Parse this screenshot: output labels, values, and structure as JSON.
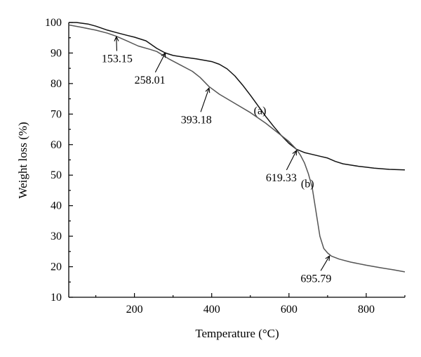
{
  "chart_data": {
    "type": "line",
    "title": "",
    "xlabel": "Temperature (°C)",
    "ylabel": "Weight loss (%)",
    "xlim": [
      30,
      900
    ],
    "ylim": [
      10,
      100
    ],
    "x_ticks": [
      200,
      400,
      600,
      800
    ],
    "y_ticks": [
      10,
      20,
      30,
      40,
      50,
      60,
      70,
      80,
      90,
      100
    ],
    "series": [
      {
        "name": "(a)",
        "color": "#111111",
        "x": [
          30,
          50,
          80,
          100,
          130,
          153,
          180,
          200,
          230,
          258,
          280,
          300,
          330,
          360,
          400,
          420,
          440,
          460,
          480,
          500,
          520,
          540,
          560,
          580,
          600,
          619,
          640,
          660,
          680,
          700,
          720,
          740,
          760,
          780,
          800,
          820,
          840,
          860,
          880,
          900
        ],
        "y": [
          100,
          100,
          99.5,
          98.8,
          97.5,
          96.7,
          95.8,
          95.2,
          94,
          91.5,
          90,
          89.2,
          88.6,
          88.1,
          87.2,
          86.3,
          84.8,
          82.5,
          79.5,
          76.2,
          72.7,
          69.2,
          66,
          63,
          60.4,
          58.5,
          57.4,
          56.8,
          56.2,
          55.6,
          54.5,
          53.7,
          53.3,
          52.9,
          52.6,
          52.3,
          52.1,
          51.9,
          51.8,
          51.7
        ]
      },
      {
        "name": "(b)",
        "color": "#555555",
        "x": [
          30,
          60,
          100,
          130,
          153,
          180,
          210,
          240,
          258,
          290,
          320,
          350,
          370,
          393,
          420,
          460,
          500,
          540,
          570,
          600,
          619,
          630,
          640,
          650,
          660,
          670,
          680,
          690,
          700,
          710,
          730,
          760,
          800,
          840,
          870,
          900
        ],
        "y": [
          99.2,
          98.5,
          97.5,
          96.5,
          95.5,
          94,
          92.3,
          91.2,
          90.5,
          88,
          86,
          84,
          82,
          79,
          76.5,
          73.5,
          70.5,
          67,
          64,
          61,
          58.5,
          56.5,
          54,
          50.5,
          46,
          38,
          30,
          26,
          24.5,
          23.5,
          22.5,
          21.5,
          20.5,
          19.6,
          19,
          18.3
        ]
      }
    ],
    "annotations": [
      {
        "label": "153.15",
        "at": [
          153.15,
          95.8
        ],
        "text": [
          155,
          87
        ]
      },
      {
        "label": "258.01",
        "at": [
          280,
          90.5
        ],
        "text": [
          240,
          80
        ]
      },
      {
        "label": "393.18",
        "at": [
          393.18,
          79
        ],
        "text": [
          360,
          67
        ]
      },
      {
        "label": "619.33",
        "at": [
          619.33,
          58.5
        ],
        "text": [
          580,
          48
        ]
      },
      {
        "label": "695.79",
        "at": [
          705,
          24
        ],
        "text": [
          670,
          15
        ]
      },
      {
        "label": "(a)",
        "at": null,
        "text": [
          525,
          70
        ]
      },
      {
        "label": "(b)",
        "at": null,
        "text": [
          648,
          46
        ]
      }
    ],
    "grid": false,
    "legend": "none"
  }
}
